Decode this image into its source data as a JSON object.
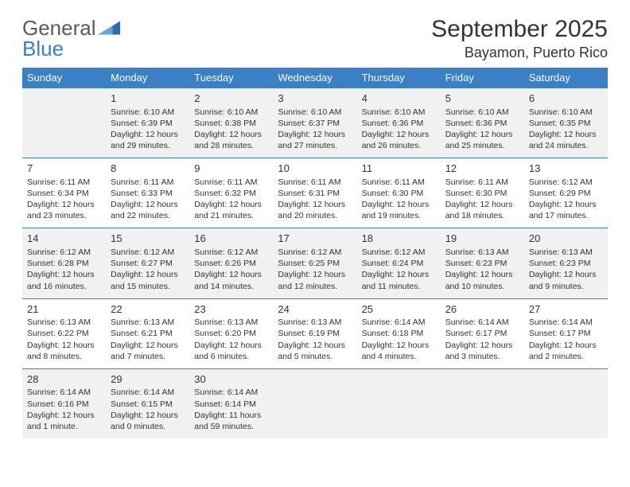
{
  "logo": {
    "text1": "General",
    "text2": "Blue",
    "icon_color": "#2f6aae"
  },
  "header": {
    "month_title": "September 2025",
    "location": "Bayamon, Puerto Rico"
  },
  "colors": {
    "header_bg": "#3b7fc4",
    "alt_row_bg": "#f1f1f1",
    "border": "#3b7fc4",
    "text": "#333333"
  },
  "days": [
    "Sunday",
    "Monday",
    "Tuesday",
    "Wednesday",
    "Thursday",
    "Friday",
    "Saturday"
  ],
  "weeks": [
    [
      null,
      {
        "n": "1",
        "sr": "Sunrise: 6:10 AM",
        "ss": "Sunset: 6:39 PM",
        "dl": "Daylight: 12 hours and 29 minutes."
      },
      {
        "n": "2",
        "sr": "Sunrise: 6:10 AM",
        "ss": "Sunset: 6:38 PM",
        "dl": "Daylight: 12 hours and 28 minutes."
      },
      {
        "n": "3",
        "sr": "Sunrise: 6:10 AM",
        "ss": "Sunset: 6:37 PM",
        "dl": "Daylight: 12 hours and 27 minutes."
      },
      {
        "n": "4",
        "sr": "Sunrise: 6:10 AM",
        "ss": "Sunset: 6:36 PM",
        "dl": "Daylight: 12 hours and 26 minutes."
      },
      {
        "n": "5",
        "sr": "Sunrise: 6:10 AM",
        "ss": "Sunset: 6:36 PM",
        "dl": "Daylight: 12 hours and 25 minutes."
      },
      {
        "n": "6",
        "sr": "Sunrise: 6:10 AM",
        "ss": "Sunset: 6:35 PM",
        "dl": "Daylight: 12 hours and 24 minutes."
      }
    ],
    [
      {
        "n": "7",
        "sr": "Sunrise: 6:11 AM",
        "ss": "Sunset: 6:34 PM",
        "dl": "Daylight: 12 hours and 23 minutes."
      },
      {
        "n": "8",
        "sr": "Sunrise: 6:11 AM",
        "ss": "Sunset: 6:33 PM",
        "dl": "Daylight: 12 hours and 22 minutes."
      },
      {
        "n": "9",
        "sr": "Sunrise: 6:11 AM",
        "ss": "Sunset: 6:32 PM",
        "dl": "Daylight: 12 hours and 21 minutes."
      },
      {
        "n": "10",
        "sr": "Sunrise: 6:11 AM",
        "ss": "Sunset: 6:31 PM",
        "dl": "Daylight: 12 hours and 20 minutes."
      },
      {
        "n": "11",
        "sr": "Sunrise: 6:11 AM",
        "ss": "Sunset: 6:30 PM",
        "dl": "Daylight: 12 hours and 19 minutes."
      },
      {
        "n": "12",
        "sr": "Sunrise: 6:11 AM",
        "ss": "Sunset: 6:30 PM",
        "dl": "Daylight: 12 hours and 18 minutes."
      },
      {
        "n": "13",
        "sr": "Sunrise: 6:12 AM",
        "ss": "Sunset: 6:29 PM",
        "dl": "Daylight: 12 hours and 17 minutes."
      }
    ],
    [
      {
        "n": "14",
        "sr": "Sunrise: 6:12 AM",
        "ss": "Sunset: 6:28 PM",
        "dl": "Daylight: 12 hours and 16 minutes."
      },
      {
        "n": "15",
        "sr": "Sunrise: 6:12 AM",
        "ss": "Sunset: 6:27 PM",
        "dl": "Daylight: 12 hours and 15 minutes."
      },
      {
        "n": "16",
        "sr": "Sunrise: 6:12 AM",
        "ss": "Sunset: 6:26 PM",
        "dl": "Daylight: 12 hours and 14 minutes."
      },
      {
        "n": "17",
        "sr": "Sunrise: 6:12 AM",
        "ss": "Sunset: 6:25 PM",
        "dl": "Daylight: 12 hours and 12 minutes."
      },
      {
        "n": "18",
        "sr": "Sunrise: 6:12 AM",
        "ss": "Sunset: 6:24 PM",
        "dl": "Daylight: 12 hours and 11 minutes."
      },
      {
        "n": "19",
        "sr": "Sunrise: 6:13 AM",
        "ss": "Sunset: 6:23 PM",
        "dl": "Daylight: 12 hours and 10 minutes."
      },
      {
        "n": "20",
        "sr": "Sunrise: 6:13 AM",
        "ss": "Sunset: 6:23 PM",
        "dl": "Daylight: 12 hours and 9 minutes."
      }
    ],
    [
      {
        "n": "21",
        "sr": "Sunrise: 6:13 AM",
        "ss": "Sunset: 6:22 PM",
        "dl": "Daylight: 12 hours and 8 minutes."
      },
      {
        "n": "22",
        "sr": "Sunrise: 6:13 AM",
        "ss": "Sunset: 6:21 PM",
        "dl": "Daylight: 12 hours and 7 minutes."
      },
      {
        "n": "23",
        "sr": "Sunrise: 6:13 AM",
        "ss": "Sunset: 6:20 PM",
        "dl": "Daylight: 12 hours and 6 minutes."
      },
      {
        "n": "24",
        "sr": "Sunrise: 6:13 AM",
        "ss": "Sunset: 6:19 PM",
        "dl": "Daylight: 12 hours and 5 minutes."
      },
      {
        "n": "25",
        "sr": "Sunrise: 6:14 AM",
        "ss": "Sunset: 6:18 PM",
        "dl": "Daylight: 12 hours and 4 minutes."
      },
      {
        "n": "26",
        "sr": "Sunrise: 6:14 AM",
        "ss": "Sunset: 6:17 PM",
        "dl": "Daylight: 12 hours and 3 minutes."
      },
      {
        "n": "27",
        "sr": "Sunrise: 6:14 AM",
        "ss": "Sunset: 6:17 PM",
        "dl": "Daylight: 12 hours and 2 minutes."
      }
    ],
    [
      {
        "n": "28",
        "sr": "Sunrise: 6:14 AM",
        "ss": "Sunset: 6:16 PM",
        "dl": "Daylight: 12 hours and 1 minute."
      },
      {
        "n": "29",
        "sr": "Sunrise: 6:14 AM",
        "ss": "Sunset: 6:15 PM",
        "dl": "Daylight: 12 hours and 0 minutes."
      },
      {
        "n": "30",
        "sr": "Sunrise: 6:14 AM",
        "ss": "Sunset: 6:14 PM",
        "dl": "Daylight: 11 hours and 59 minutes."
      },
      null,
      null,
      null,
      null
    ]
  ]
}
